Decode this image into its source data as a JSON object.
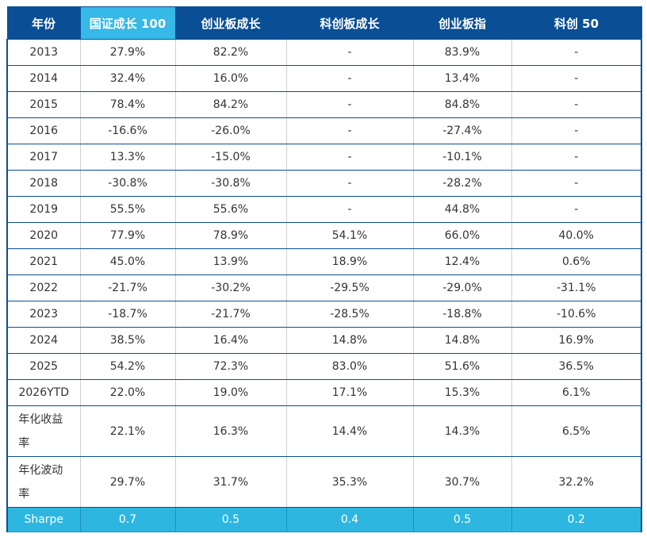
{
  "headers": [
    "年份",
    "国证成长 100",
    "创业板成长",
    "科创板成长",
    "创业板指",
    "科创 50"
  ],
  "rows": [
    [
      "2013",
      "27.9%",
      "82.2%",
      "-",
      "83.9%",
      "-"
    ],
    [
      "2014",
      "32.4%",
      "16.0%",
      "-",
      "13.4%",
      "-"
    ],
    [
      "2015",
      "78.4%",
      "84.2%",
      "-",
      "84.8%",
      "-"
    ],
    [
      "2016",
      "-16.6%",
      "-26.0%",
      "-",
      "-27.4%",
      "-"
    ],
    [
      "2017",
      "13.3%",
      "-15.0%",
      "-",
      "-10.1%",
      "-"
    ],
    [
      "2018",
      "-30.8%",
      "-30.8%",
      "-",
      "-28.2%",
      "-"
    ],
    [
      "2019",
      "55.5%",
      "55.6%",
      "-",
      "44.8%",
      "-"
    ],
    [
      "2020",
      "77.9%",
      "78.9%",
      "54.1%",
      "66.0%",
      "40.0%"
    ],
    [
      "2021",
      "45.0%",
      "13.9%",
      "18.9%",
      "12.4%",
      "0.6%"
    ],
    [
      "2022",
      "-21.7%",
      "-30.2%",
      "-29.5%",
      "-29.0%",
      "-31.1%"
    ],
    [
      "2023",
      "-18.7%",
      "-21.7%",
      "-28.5%",
      "-18.8%",
      "-10.6%"
    ],
    [
      "2024",
      "38.5%",
      "16.4%",
      "14.8%",
      "14.8%",
      "16.9%"
    ],
    [
      "2025",
      "54.2%",
      "72.3%",
      "83.0%",
      "51.6%",
      "36.5%"
    ],
    [
      "2026YTD",
      "22.0%",
      "19.0%",
      "17.1%",
      "15.3%",
      "6.1%"
    ]
  ],
  "summary": [
    [
      "年化收益率",
      "22.1%",
      "16.3%",
      "14.4%",
      "14.3%",
      "6.5%"
    ],
    [
      "年化波动率",
      "29.7%",
      "31.7%",
      "35.3%",
      "30.7%",
      "32.2%"
    ]
  ],
  "sharpe": [
    "Sharpe",
    "0.7",
    "0.5",
    "0.4",
    "0.5",
    "0.2"
  ],
  "colors": {
    "header": "#0a4f95",
    "highlight": "#36b9e6",
    "sharpe_row": "#2db7e0"
  }
}
